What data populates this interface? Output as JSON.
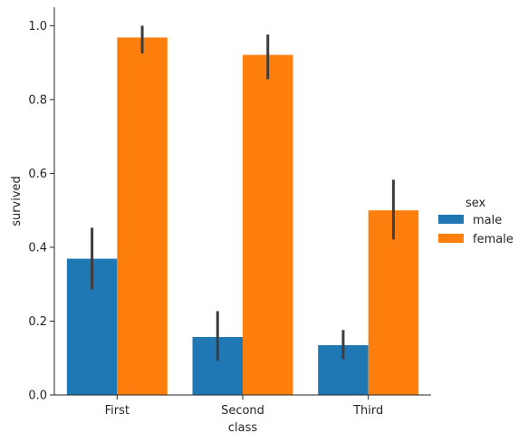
{
  "chart_data": {
    "type": "bar",
    "xlabel": "class",
    "ylabel": "survived",
    "categories": [
      "First",
      "Second",
      "Third"
    ],
    "ylim": [
      0,
      1.05
    ],
    "yticks": [
      "0.0",
      "0.2",
      "0.4",
      "0.6",
      "0.8",
      "1.0"
    ],
    "grid": false,
    "legend": {
      "title": "sex",
      "placement": "right",
      "entries": [
        "male",
        "female"
      ]
    },
    "series": [
      {
        "name": "male",
        "color": "#1f77b4",
        "values": [
          0.369,
          0.157,
          0.135
        ],
        "ci_low": [
          0.286,
          0.093,
          0.097
        ],
        "ci_high": [
          0.453,
          0.227,
          0.176
        ]
      },
      {
        "name": "female",
        "color": "#ff7f0e",
        "values": [
          0.968,
          0.921,
          0.5
        ],
        "ci_low": [
          0.925,
          0.855,
          0.421
        ],
        "ci_high": [
          1.0,
          0.976,
          0.583
        ]
      }
    ]
  }
}
